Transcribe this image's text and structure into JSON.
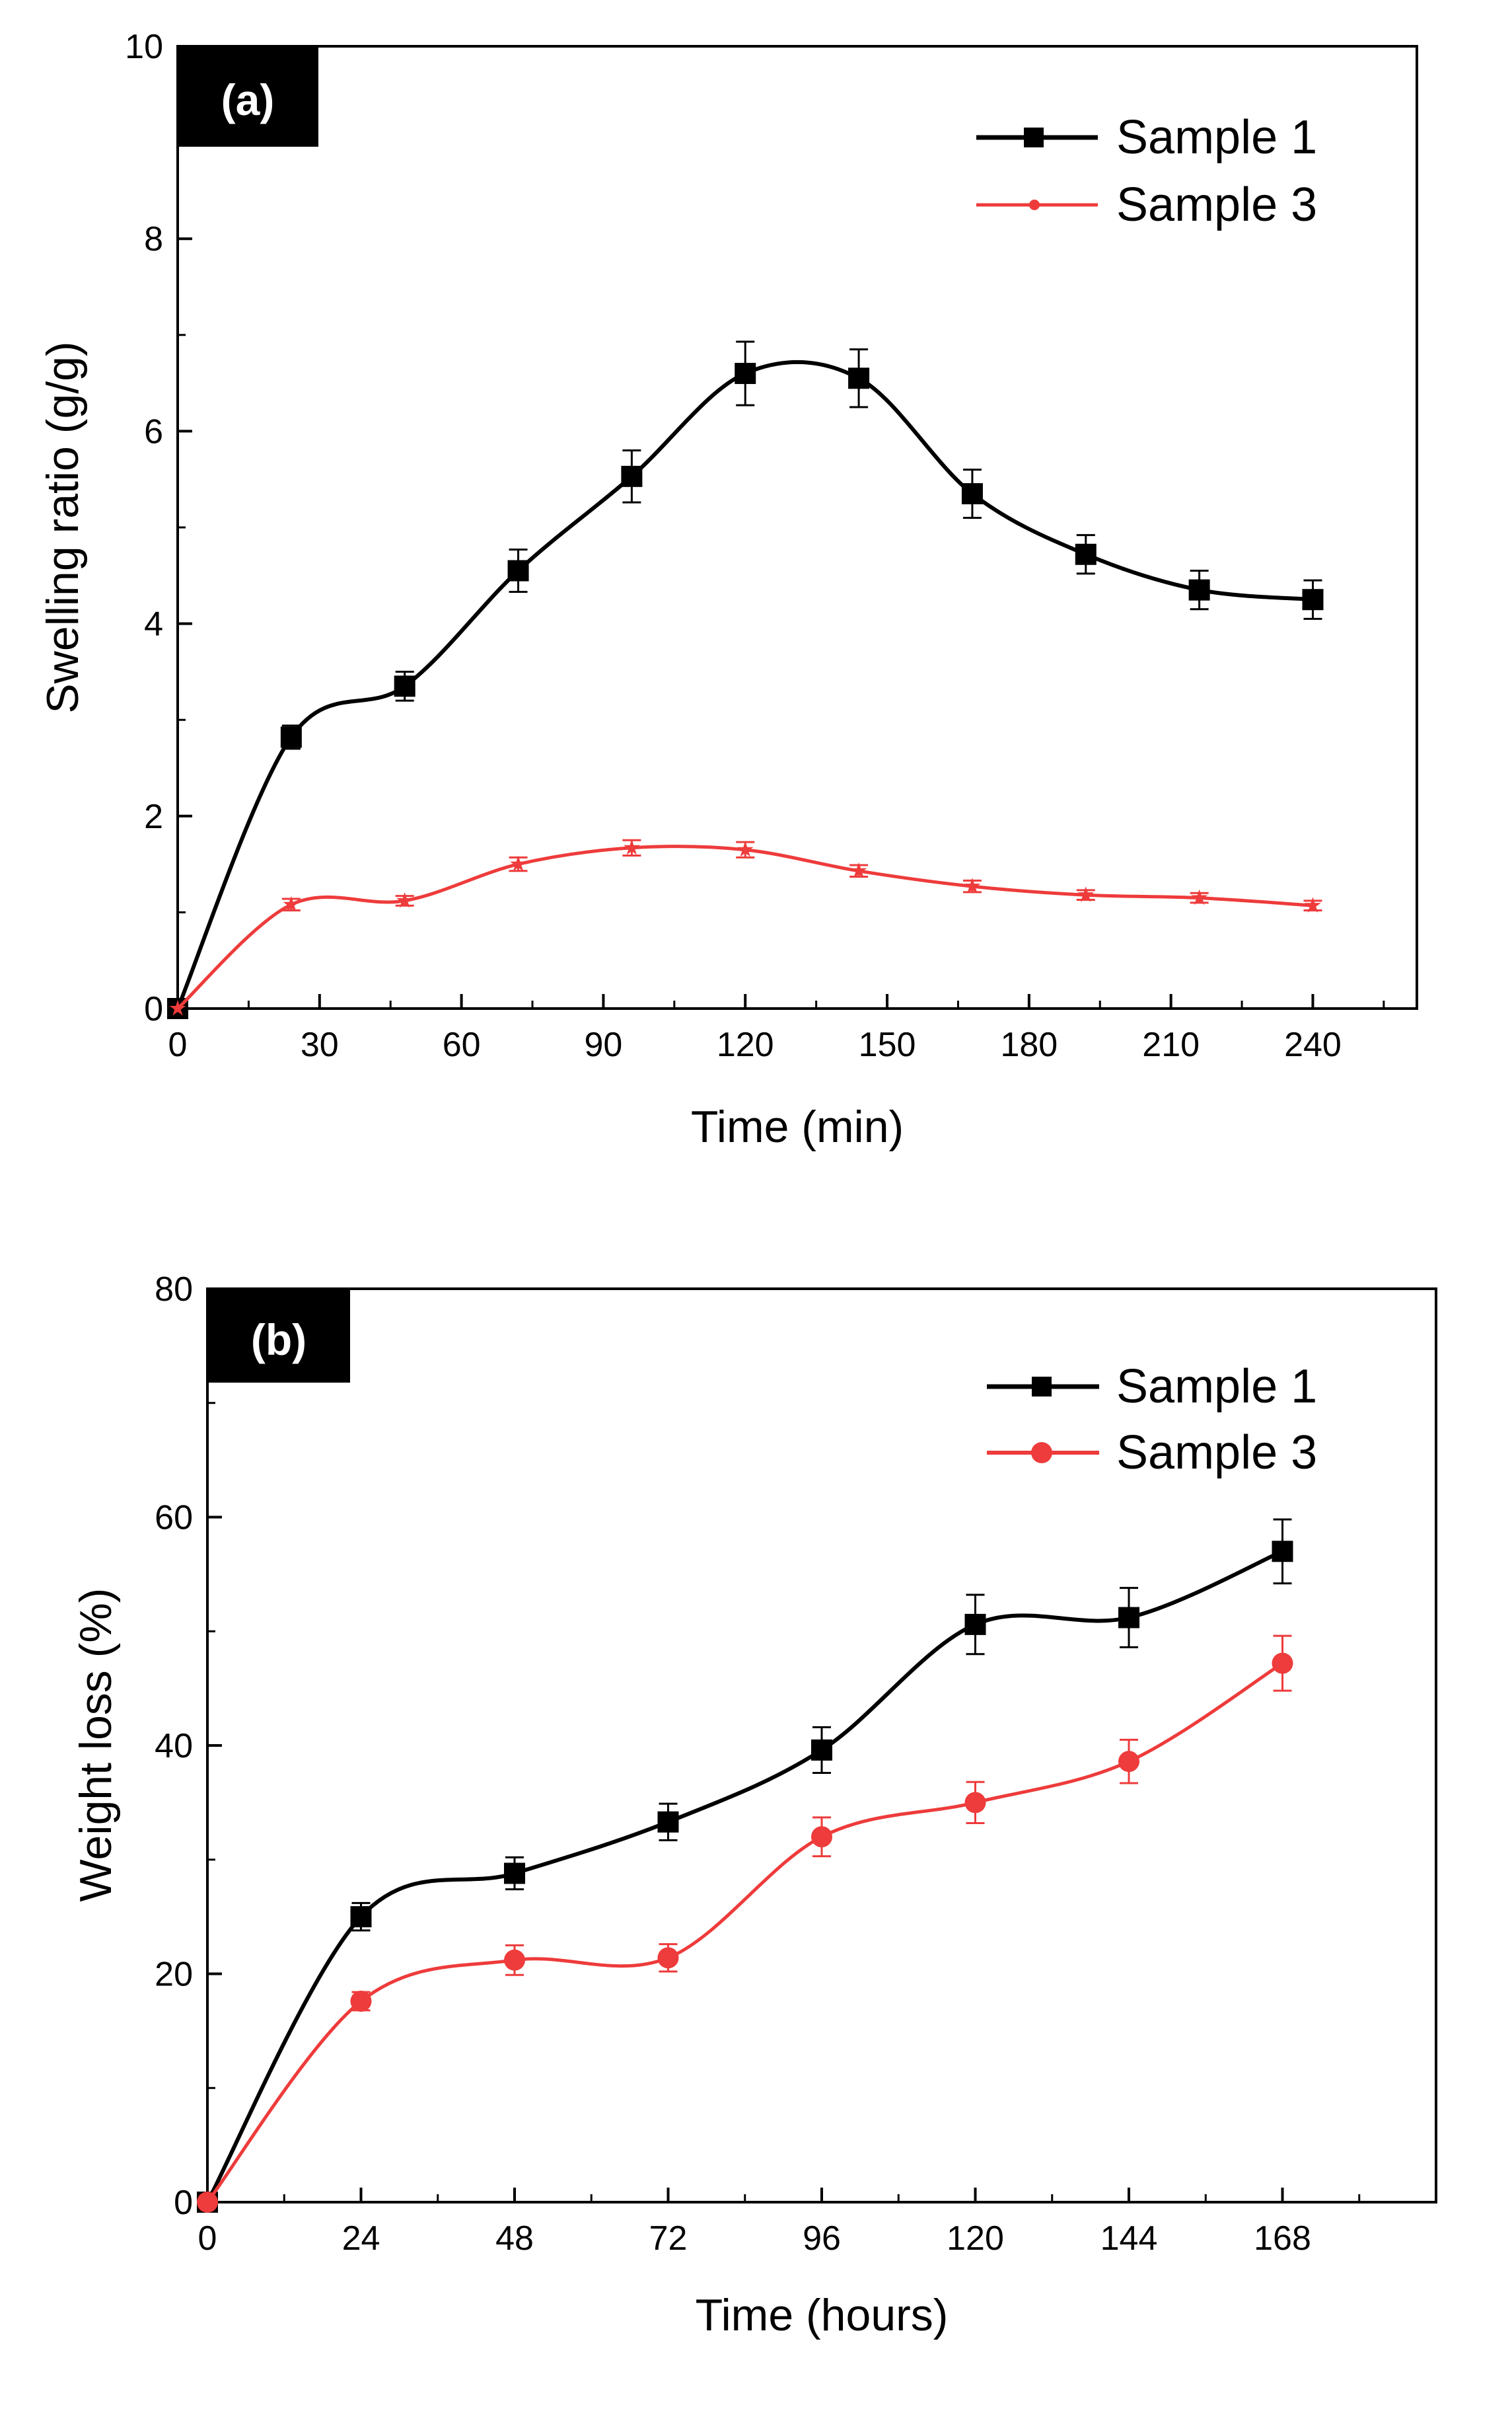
{
  "chart_data": [
    {
      "id": "a",
      "type": "line",
      "panel_label": "(a)",
      "xlabel": "Time (min)",
      "ylabel": "Swelling ratio (g/g)",
      "xlim": [
        0,
        262
      ],
      "ylim": [
        0,
        10
      ],
      "xticks": [
        0,
        30,
        60,
        90,
        120,
        150,
        180,
        210,
        240
      ],
      "yticks": [
        0,
        2,
        4,
        6,
        8,
        10
      ],
      "legend": "top-right",
      "series": [
        {
          "name": "Sample 1",
          "color": "#000000",
          "marker": "square",
          "x": [
            0,
            24,
            48,
            72,
            96,
            120,
            144,
            168,
            192,
            216,
            240
          ],
          "y": [
            0,
            2.82,
            3.35,
            4.55,
            5.53,
            6.6,
            6.55,
            5.35,
            4.72,
            4.35,
            4.25
          ],
          "err": [
            0,
            0.12,
            0.15,
            0.22,
            0.27,
            0.33,
            0.3,
            0.25,
            0.2,
            0.2,
            0.2
          ]
        },
        {
          "name": "Sample 3",
          "color": "#ee3b3b",
          "marker": "star",
          "x": [
            0,
            24,
            48,
            72,
            96,
            120,
            144,
            168,
            192,
            216,
            240
          ],
          "y": [
            0,
            1.08,
            1.12,
            1.5,
            1.67,
            1.65,
            1.43,
            1.27,
            1.18,
            1.15,
            1.07
          ],
          "err": [
            0,
            0.06,
            0.05,
            0.07,
            0.08,
            0.08,
            0.06,
            0.06,
            0.05,
            0.05,
            0.05
          ]
        }
      ]
    },
    {
      "id": "b",
      "type": "line",
      "panel_label": "(b)",
      "xlabel": "Time (hours)",
      "ylabel": "Weight loss (%)",
      "xlim": [
        0,
        192
      ],
      "ylim": [
        0,
        80
      ],
      "xticks": [
        0,
        24,
        48,
        72,
        96,
        120,
        144,
        168
      ],
      "yticks": [
        0,
        20,
        40,
        60,
        80
      ],
      "legend": "top-right",
      "series": [
        {
          "name": "Sample 1",
          "color": "#000000",
          "marker": "square",
          "x": [
            0,
            24,
            48,
            72,
            96,
            120,
            144,
            168
          ],
          "y": [
            0,
            25,
            28.8,
            33.3,
            39.6,
            50.6,
            51.2,
            57
          ],
          "err": [
            0,
            1.2,
            1.4,
            1.6,
            2.0,
            2.6,
            2.6,
            2.8
          ]
        },
        {
          "name": "Sample 3",
          "color": "#ee3b3b",
          "marker": "circle",
          "x": [
            0,
            24,
            48,
            72,
            96,
            120,
            144,
            168
          ],
          "y": [
            0,
            17.6,
            21.2,
            21.4,
            32,
            35,
            38.6,
            47.2
          ],
          "err": [
            0,
            0.8,
            1.3,
            1.2,
            1.7,
            1.8,
            1.9,
            2.4
          ]
        }
      ]
    }
  ]
}
